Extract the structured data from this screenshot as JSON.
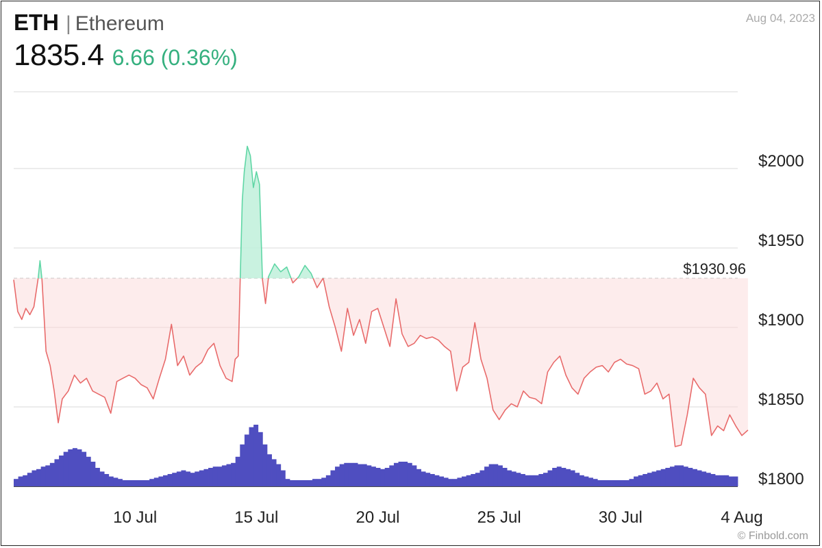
{
  "header": {
    "symbol": "ETH",
    "separator": "|",
    "name": "Ethereum",
    "price": "1835.4",
    "change": "6.66 (0.36%)",
    "date": "Aug 04, 2023"
  },
  "credit": "© Finbold.com",
  "colors": {
    "up_line": "#5fd6a5",
    "up_fill": "#bff0da",
    "down_line": "#e86a6a",
    "down_fill": "#fbdada",
    "volume": "#4f4ec0",
    "grid": "#d9d9d9",
    "change_text": "#35b07f"
  },
  "chart_data": {
    "type": "line",
    "reference_value": 1930.96,
    "reference_label": "$1930.96",
    "yticks": [
      {
        "value": 2000,
        "label": "$2000"
      },
      {
        "value": 1950,
        "label": "$1950"
      },
      {
        "value": 1900,
        "label": "$1900"
      },
      {
        "value": 1850,
        "label": "$1850"
      },
      {
        "value": 1800,
        "label": "$1800"
      }
    ],
    "ylim": [
      1800,
      2050
    ],
    "xlim": [
      "2023-07-05",
      "2023-08-04"
    ],
    "xticks": [
      {
        "x": "2023-07-10",
        "label": "10 Jul"
      },
      {
        "x": "2023-07-15",
        "label": "15 Jul"
      },
      {
        "x": "2023-07-20",
        "label": "20 Jul"
      },
      {
        "x": "2023-07-25",
        "label": "25 Jul"
      },
      {
        "x": "2023-07-30",
        "label": "30 Jul"
      },
      {
        "x": "2023-08-04",
        "label": "4 Aug"
      }
    ],
    "series": [
      {
        "values": [
          [
            "2023-07-05 00:00",
            1930
          ],
          [
            "2023-07-05 04:00",
            1910
          ],
          [
            "2023-07-05 08:00",
            1905
          ],
          [
            "2023-07-05 12:00",
            1912
          ],
          [
            "2023-07-05 16:00",
            1908
          ],
          [
            "2023-07-05 20:00",
            1913
          ],
          [
            "2023-07-06 00:00",
            1930
          ],
          [
            "2023-07-06 02:00",
            1942
          ],
          [
            "2023-07-06 04:00",
            1930
          ],
          [
            "2023-07-06 08:00",
            1885
          ],
          [
            "2023-07-06 12:00",
            1876
          ],
          [
            "2023-07-06 16:00",
            1860
          ],
          [
            "2023-07-06 20:00",
            1840
          ],
          [
            "2023-07-07 00:00",
            1855
          ],
          [
            "2023-07-07 06:00",
            1860
          ],
          [
            "2023-07-07 12:00",
            1870
          ],
          [
            "2023-07-07 18:00",
            1865
          ],
          [
            "2023-07-08 00:00",
            1868
          ],
          [
            "2023-07-08 06:00",
            1860
          ],
          [
            "2023-07-08 12:00",
            1858
          ],
          [
            "2023-07-08 18:00",
            1856
          ],
          [
            "2023-07-09 00:00",
            1846
          ],
          [
            "2023-07-09 06:00",
            1866
          ],
          [
            "2023-07-09 12:00",
            1868
          ],
          [
            "2023-07-09 18:00",
            1870
          ],
          [
            "2023-07-10 00:00",
            1868
          ],
          [
            "2023-07-10 06:00",
            1864
          ],
          [
            "2023-07-10 12:00",
            1862
          ],
          [
            "2023-07-10 18:00",
            1855
          ],
          [
            "2023-07-11 00:00",
            1868
          ],
          [
            "2023-07-11 06:00",
            1880
          ],
          [
            "2023-07-11 12:00",
            1902
          ],
          [
            "2023-07-11 18:00",
            1876
          ],
          [
            "2023-07-12 00:00",
            1882
          ],
          [
            "2023-07-12 06:00",
            1870
          ],
          [
            "2023-07-12 12:00",
            1875
          ],
          [
            "2023-07-12 18:00",
            1878
          ],
          [
            "2023-07-13 00:00",
            1886
          ],
          [
            "2023-07-13 06:00",
            1890
          ],
          [
            "2023-07-13 12:00",
            1876
          ],
          [
            "2023-07-13 18:00",
            1868
          ],
          [
            "2023-07-14 00:00",
            1866
          ],
          [
            "2023-07-14 03:00",
            1880
          ],
          [
            "2023-07-14 06:00",
            1882
          ],
          [
            "2023-07-14 08:00",
            1931
          ],
          [
            "2023-07-14 10:00",
            1980
          ],
          [
            "2023-07-14 12:00",
            1998
          ],
          [
            "2023-07-14 15:00",
            2014
          ],
          [
            "2023-07-14 18:00",
            2008
          ],
          [
            "2023-07-14 21:00",
            1988
          ],
          [
            "2023-07-15 00:00",
            1998
          ],
          [
            "2023-07-15 03:00",
            1990
          ],
          [
            "2023-07-15 06:00",
            1930
          ],
          [
            "2023-07-15 09:00",
            1915
          ],
          [
            "2023-07-15 12:00",
            1932
          ],
          [
            "2023-07-15 18:00",
            1940
          ],
          [
            "2023-07-16 00:00",
            1935
          ],
          [
            "2023-07-16 06:00",
            1938
          ],
          [
            "2023-07-16 12:00",
            1928
          ],
          [
            "2023-07-16 18:00",
            1932
          ],
          [
            "2023-07-17 00:00",
            1939
          ],
          [
            "2023-07-17 06:00",
            1934
          ],
          [
            "2023-07-17 12:00",
            1925
          ],
          [
            "2023-07-17 18:00",
            1931
          ],
          [
            "2023-07-18 00:00",
            1913
          ],
          [
            "2023-07-18 06:00",
            1900
          ],
          [
            "2023-07-18 12:00",
            1885
          ],
          [
            "2023-07-18 18:00",
            1912
          ],
          [
            "2023-07-19 00:00",
            1895
          ],
          [
            "2023-07-19 06:00",
            1905
          ],
          [
            "2023-07-19 12:00",
            1890
          ],
          [
            "2023-07-19 18:00",
            1910
          ],
          [
            "2023-07-20 00:00",
            1912
          ],
          [
            "2023-07-20 06:00",
            1900
          ],
          [
            "2023-07-20 12:00",
            1888
          ],
          [
            "2023-07-20 18:00",
            1918
          ],
          [
            "2023-07-21 00:00",
            1896
          ],
          [
            "2023-07-21 06:00",
            1888
          ],
          [
            "2023-07-21 12:00",
            1890
          ],
          [
            "2023-07-21 18:00",
            1895
          ],
          [
            "2023-07-22 00:00",
            1893
          ],
          [
            "2023-07-22 06:00",
            1894
          ],
          [
            "2023-07-22 12:00",
            1892
          ],
          [
            "2023-07-22 18:00",
            1888
          ],
          [
            "2023-07-23 00:00",
            1885
          ],
          [
            "2023-07-23 06:00",
            1860
          ],
          [
            "2023-07-23 12:00",
            1875
          ],
          [
            "2023-07-23 18:00",
            1878
          ],
          [
            "2023-07-24 00:00",
            1903
          ],
          [
            "2023-07-24 06:00",
            1880
          ],
          [
            "2023-07-24 12:00",
            1868
          ],
          [
            "2023-07-24 18:00",
            1848
          ],
          [
            "2023-07-25 00:00",
            1842
          ],
          [
            "2023-07-25 06:00",
            1848
          ],
          [
            "2023-07-25 12:00",
            1852
          ],
          [
            "2023-07-25 18:00",
            1850
          ],
          [
            "2023-07-26 00:00",
            1860
          ],
          [
            "2023-07-26 06:00",
            1856
          ],
          [
            "2023-07-26 12:00",
            1855
          ],
          [
            "2023-07-26 18:00",
            1852
          ],
          [
            "2023-07-27 00:00",
            1872
          ],
          [
            "2023-07-27 06:00",
            1878
          ],
          [
            "2023-07-27 12:00",
            1882
          ],
          [
            "2023-07-27 18:00",
            1870
          ],
          [
            "2023-07-28 00:00",
            1862
          ],
          [
            "2023-07-28 06:00",
            1858
          ],
          [
            "2023-07-28 12:00",
            1868
          ],
          [
            "2023-07-28 18:00",
            1872
          ],
          [
            "2023-07-29 00:00",
            1875
          ],
          [
            "2023-07-29 06:00",
            1876
          ],
          [
            "2023-07-29 12:00",
            1872
          ],
          [
            "2023-07-29 18:00",
            1878
          ],
          [
            "2023-07-30 00:00",
            1880
          ],
          [
            "2023-07-30 06:00",
            1877
          ],
          [
            "2023-07-30 12:00",
            1876
          ],
          [
            "2023-07-30 18:00",
            1874
          ],
          [
            "2023-07-31 00:00",
            1858
          ],
          [
            "2023-07-31 06:00",
            1860
          ],
          [
            "2023-07-31 12:00",
            1865
          ],
          [
            "2023-07-31 18:00",
            1855
          ],
          [
            "2023-08-01 00:00",
            1858
          ],
          [
            "2023-08-01 06:00",
            1825
          ],
          [
            "2023-08-01 12:00",
            1826
          ],
          [
            "2023-08-01 18:00",
            1845
          ],
          [
            "2023-08-02 00:00",
            1868
          ],
          [
            "2023-08-02 06:00",
            1862
          ],
          [
            "2023-08-02 12:00",
            1858
          ],
          [
            "2023-08-02 18:00",
            1832
          ],
          [
            "2023-08-03 00:00",
            1838
          ],
          [
            "2023-08-03 06:00",
            1835
          ],
          [
            "2023-08-03 12:00",
            1845
          ],
          [
            "2023-08-03 18:00",
            1838
          ],
          [
            "2023-08-04 00:00",
            1832
          ],
          [
            "2023-08-04 06:00",
            1835.4
          ]
        ]
      }
    ],
    "volume": {
      "relative": [
        0.06,
        0.08,
        0.09,
        0.11,
        0.13,
        0.14,
        0.16,
        0.17,
        0.19,
        0.22,
        0.25,
        0.28,
        0.3,
        0.31,
        0.3,
        0.28,
        0.24,
        0.2,
        0.15,
        0.12,
        0.1,
        0.08,
        0.07,
        0.06,
        0.05,
        0.05,
        0.05,
        0.05,
        0.05,
        0.05,
        0.06,
        0.07,
        0.08,
        0.09,
        0.1,
        0.11,
        0.12,
        0.13,
        0.12,
        0.11,
        0.12,
        0.13,
        0.14,
        0.15,
        0.16,
        0.16,
        0.17,
        0.18,
        0.19,
        0.24,
        0.34,
        0.42,
        0.48,
        0.5,
        0.44,
        0.34,
        0.26,
        0.22,
        0.18,
        0.13,
        0.06,
        0.05,
        0.05,
        0.05,
        0.05,
        0.05,
        0.06,
        0.06,
        0.07,
        0.09,
        0.13,
        0.16,
        0.18,
        0.19,
        0.19,
        0.19,
        0.18,
        0.18,
        0.17,
        0.16,
        0.15,
        0.14,
        0.15,
        0.17,
        0.19,
        0.2,
        0.2,
        0.19,
        0.17,
        0.14,
        0.12,
        0.11,
        0.1,
        0.09,
        0.08,
        0.07,
        0.06,
        0.06,
        0.07,
        0.08,
        0.09,
        0.1,
        0.11,
        0.13,
        0.16,
        0.18,
        0.18,
        0.17,
        0.15,
        0.13,
        0.12,
        0.11,
        0.1,
        0.09,
        0.09,
        0.09,
        0.1,
        0.11,
        0.13,
        0.15,
        0.16,
        0.15,
        0.14,
        0.13,
        0.11,
        0.09,
        0.08,
        0.07,
        0.06,
        0.05,
        0.05,
        0.05,
        0.05,
        0.05,
        0.05,
        0.05,
        0.06,
        0.08,
        0.09,
        0.1,
        0.11,
        0.12,
        0.13,
        0.14,
        0.15,
        0.16,
        0.17,
        0.17,
        0.16,
        0.15,
        0.14,
        0.13,
        0.12,
        0.11,
        0.1,
        0.09,
        0.09,
        0.09,
        0.08,
        0.08
      ]
    }
  }
}
